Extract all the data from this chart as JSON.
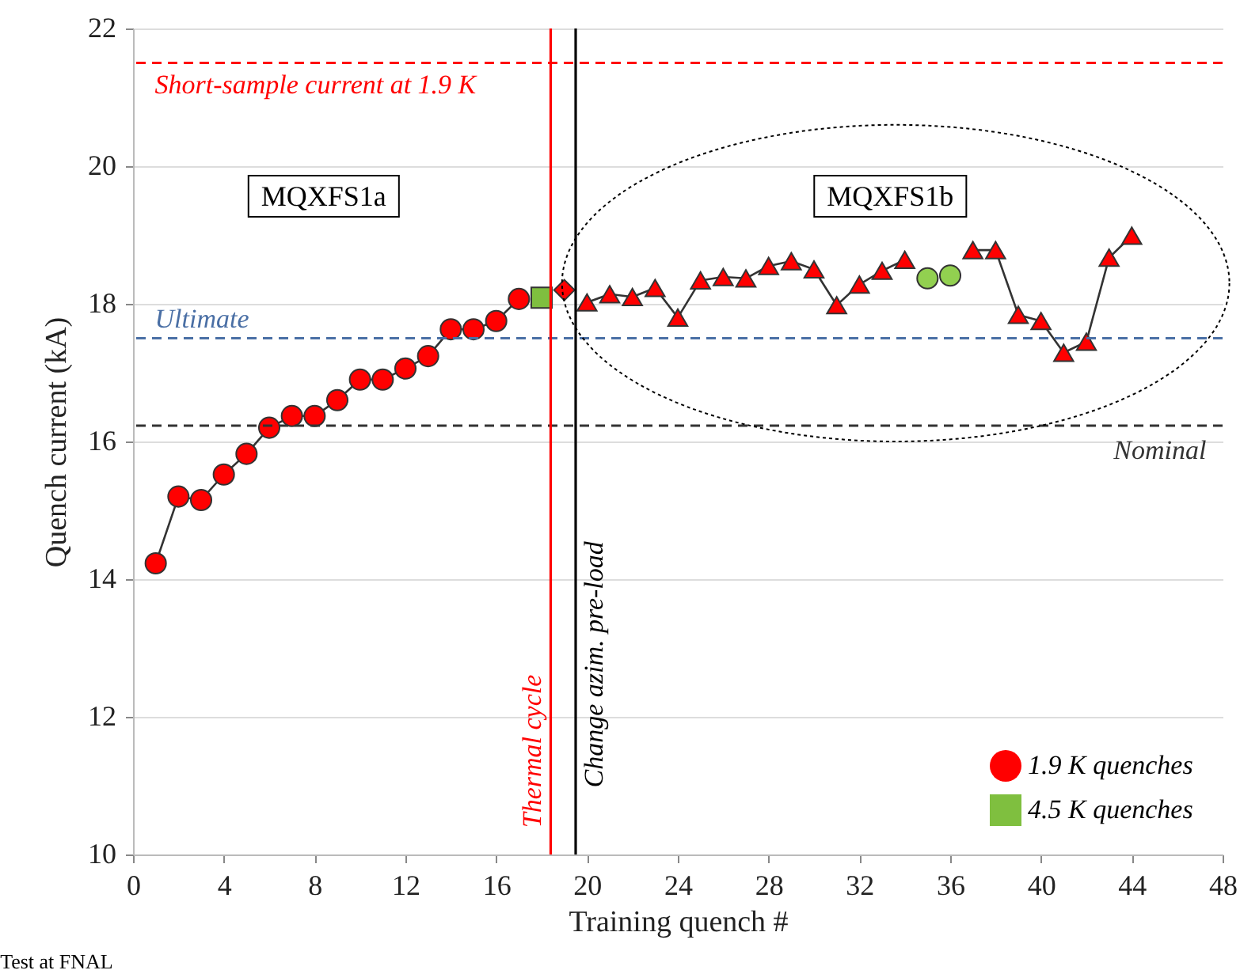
{
  "chart_data": {
    "type": "line",
    "xlabel": "Training quench #",
    "ylabel": "Quench current (kA)",
    "xlim": [
      0,
      48
    ],
    "xticks": [
      0,
      4,
      8,
      12,
      16,
      20,
      24,
      28,
      32,
      36,
      40,
      44,
      48
    ],
    "ylim": [
      10,
      22
    ],
    "yticks": [
      10,
      12,
      14,
      16,
      18,
      20,
      22
    ],
    "grid": "y",
    "legend": "bottom right",
    "series": [
      {
        "name": "1.9 K quenches",
        "marker": "circle",
        "color": "#ff0000",
        "x": [
          1,
          2,
          3,
          4,
          5,
          6,
          7,
          8,
          9,
          10,
          11,
          12,
          13,
          14,
          15,
          16,
          17
        ],
        "values": [
          14.23,
          15.2,
          15.15,
          15.52,
          15.82,
          16.2,
          16.37,
          16.37,
          16.6,
          16.9,
          16.9,
          17.06,
          17.24,
          17.63,
          17.63,
          17.75,
          18.07
        ]
      },
      {
        "name": "4.5 K quenches",
        "type": "scatter",
        "marker": "square",
        "color": "#7fbf3f",
        "x": [
          18
        ],
        "values": [
          18.09
        ]
      },
      {
        "type": "scatter",
        "marker": "diamond",
        "color": "#ff0000",
        "x": [
          19
        ],
        "values": [
          18.2
        ]
      },
      {
        "marker": "triangle",
        "color": "#ff0000",
        "x": [
          20,
          21,
          22,
          23,
          24,
          25,
          26,
          27,
          28,
          29,
          30,
          31,
          32,
          33,
          34,
          35,
          36,
          37,
          38,
          39,
          40,
          41,
          42,
          43,
          44
        ],
        "values": [
          18.02,
          18.14,
          18.1,
          18.23,
          17.8,
          18.34,
          18.39,
          18.37,
          18.55,
          18.62,
          18.5,
          17.98,
          18.28,
          18.48,
          18.64,
          null,
          null,
          18.78,
          18.78,
          17.84,
          17.75,
          17.29,
          17.45,
          18.67,
          18.99
        ]
      },
      {
        "type": "scatter",
        "marker": "circle",
        "color": "#92d050",
        "x": [
          35,
          36
        ],
        "values": [
          18.37,
          18.41
        ]
      }
    ],
    "ref_lines": [
      {
        "axis": "y",
        "value": 21.5,
        "label": "Short-sample current at 1.9 K",
        "color": "#ff0000",
        "line_style": "dashed"
      },
      {
        "axis": "y",
        "value": 17.5,
        "label": "Ultimate",
        "color": "#4a6fa5",
        "line_style": "dashed"
      },
      {
        "axis": "y",
        "value": 16.23,
        "label": "Nominal",
        "color": "#333333",
        "line_style": "dashed"
      },
      {
        "axis": "x",
        "value": 18.4,
        "label": "Thermal cycle",
        "color": "#ff0000",
        "line_style": "solid"
      },
      {
        "axis": "x",
        "value": 19.5,
        "label": "Change azim. pre-load",
        "color": "#000000",
        "line_style": "solid"
      }
    ],
    "annotations": [
      "MQXFS1a",
      "MQXFS1b",
      "Test at FNAL"
    ]
  }
}
